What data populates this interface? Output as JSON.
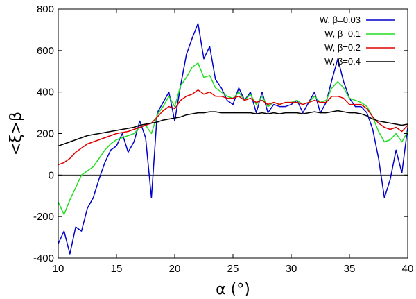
{
  "chart_data": {
    "type": "line",
    "title": "",
    "xlabel": "α (°)",
    "ylabel": "<ξ>β",
    "xlim": [
      10,
      40
    ],
    "ylim": [
      -400,
      800
    ],
    "xticks": [
      10,
      15,
      20,
      25,
      30,
      35,
      40
    ],
    "yticks": [
      -400,
      -200,
      0,
      200,
      400,
      600,
      800
    ],
    "xtick_labels": [
      "10",
      "15",
      "20",
      "25",
      "30",
      "35",
      "40"
    ],
    "ytick_labels": [
      "-400",
      "-200",
      "0",
      "200",
      "400",
      "600",
      "800"
    ],
    "zero_line": 0,
    "legend_position": "top-right",
    "series": [
      {
        "name": "W, β=0.03",
        "color": "#0000cc",
        "x": [
          10,
          10.5,
          11,
          11.5,
          12,
          12.5,
          13,
          13.5,
          14,
          14.5,
          15,
          15.5,
          16,
          16.5,
          17,
          17.5,
          18,
          18.5,
          19,
          19.5,
          20,
          20.5,
          21,
          21.5,
          22,
          22.5,
          23,
          23.5,
          24,
          24.5,
          25,
          25.5,
          26,
          26.5,
          27,
          27.5,
          28,
          28.5,
          29,
          29.5,
          30,
          30.5,
          31,
          31.5,
          32,
          32.5,
          33,
          33.5,
          34,
          34.5,
          35,
          35.5,
          36,
          36.5,
          37,
          37.5,
          38,
          38.5,
          39,
          39.5,
          40
        ],
        "y": [
          -330,
          -270,
          -380,
          -250,
          -270,
          -160,
          -110,
          -20,
          60,
          120,
          140,
          200,
          110,
          160,
          260,
          180,
          -110,
          300,
          350,
          400,
          260,
          430,
          580,
          660,
          730,
          560,
          620,
          460,
          420,
          360,
          340,
          420,
          360,
          400,
          300,
          400,
          300,
          340,
          330,
          330,
          340,
          360,
          300,
          350,
          400,
          300,
          350,
          460,
          560,
          450,
          370,
          330,
          330,
          300,
          220,
          80,
          -110,
          -20,
          120,
          10,
          230
        ]
      },
      {
        "name": "W, β=0.1",
        "color": "#22dd22",
        "x": [
          10,
          10.5,
          11,
          11.5,
          12,
          12.5,
          13,
          13.5,
          14,
          14.5,
          15,
          15.5,
          16,
          16.5,
          17,
          17.5,
          18,
          18.5,
          19,
          19.5,
          20,
          20.5,
          21,
          21.5,
          22,
          22.5,
          23,
          23.5,
          24,
          24.5,
          25,
          25.5,
          26,
          26.5,
          27,
          27.5,
          28,
          28.5,
          29,
          29.5,
          30,
          30.5,
          31,
          31.5,
          32,
          32.5,
          33,
          33.5,
          34,
          34.5,
          35,
          35.5,
          36,
          36.5,
          37,
          37.5,
          38,
          38.5,
          39,
          39.5,
          40
        ],
        "y": [
          -130,
          -190,
          -120,
          -60,
          0,
          20,
          40,
          80,
          120,
          150,
          170,
          180,
          190,
          200,
          230,
          240,
          200,
          290,
          330,
          380,
          330,
          430,
          470,
          520,
          540,
          470,
          480,
          420,
          400,
          380,
          370,
          400,
          360,
          390,
          340,
          380,
          330,
          350,
          340,
          350,
          350,
          360,
          340,
          350,
          380,
          350,
          360,
          420,
          450,
          420,
          370,
          360,
          350,
          330,
          280,
          210,
          160,
          170,
          200,
          160,
          210
        ]
      },
      {
        "name": "W, β=0.2",
        "color": "#dd0000",
        "x": [
          10,
          10.5,
          11,
          11.5,
          12,
          12.5,
          13,
          13.5,
          14,
          14.5,
          15,
          15.5,
          16,
          16.5,
          17,
          17.5,
          18,
          18.5,
          19,
          19.5,
          20,
          20.5,
          21,
          21.5,
          22,
          22.5,
          23,
          23.5,
          24,
          24.5,
          25,
          25.5,
          26,
          26.5,
          27,
          27.5,
          28,
          28.5,
          29,
          29.5,
          30,
          30.5,
          31,
          31.5,
          32,
          32.5,
          33,
          33.5,
          34,
          34.5,
          35,
          35.5,
          36,
          36.5,
          37,
          37.5,
          38,
          38.5,
          39,
          39.5,
          40
        ],
        "y": [
          50,
          60,
          80,
          110,
          130,
          150,
          160,
          170,
          180,
          190,
          200,
          205,
          210,
          220,
          230,
          240,
          250,
          280,
          310,
          330,
          320,
          360,
          380,
          390,
          410,
          390,
          400,
          380,
          380,
          370,
          370,
          380,
          360,
          370,
          350,
          360,
          340,
          350,
          340,
          350,
          350,
          350,
          340,
          350,
          360,
          350,
          350,
          380,
          380,
          370,
          340,
          340,
          340,
          320,
          280,
          250,
          230,
          220,
          230,
          210,
          240
        ]
      },
      {
        "name": "W, β=0.4",
        "color": "#000000",
        "x": [
          10,
          10.5,
          11,
          11.5,
          12,
          12.5,
          13,
          13.5,
          14,
          14.5,
          15,
          15.5,
          16,
          16.5,
          17,
          17.5,
          18,
          18.5,
          19,
          19.5,
          20,
          20.5,
          21,
          21.5,
          22,
          22.5,
          23,
          23.5,
          24,
          24.5,
          25,
          25.5,
          26,
          26.5,
          27,
          27.5,
          28,
          28.5,
          29,
          29.5,
          30,
          30.5,
          31,
          31.5,
          32,
          32.5,
          33,
          33.5,
          34,
          34.5,
          35,
          35.5,
          36,
          36.5,
          37,
          37.5,
          38,
          38.5,
          39,
          39.5,
          40
        ],
        "y": [
          140,
          150,
          160,
          170,
          180,
          190,
          195,
          200,
          205,
          210,
          215,
          220,
          225,
          230,
          240,
          245,
          250,
          255,
          265,
          270,
          275,
          280,
          290,
          295,
          300,
          300,
          305,
          305,
          300,
          300,
          300,
          300,
          300,
          300,
          295,
          300,
          295,
          300,
          295,
          300,
          300,
          300,
          295,
          300,
          305,
          300,
          300,
          305,
          310,
          305,
          300,
          300,
          295,
          285,
          270,
          260,
          255,
          250,
          245,
          240,
          245
        ]
      }
    ]
  }
}
